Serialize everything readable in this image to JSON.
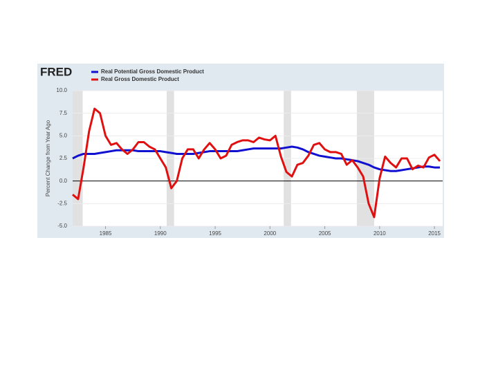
{
  "chart_data": {
    "type": "line",
    "brand": "FRED",
    "ylabel": "Percent Change from Year Ago",
    "x": [
      1982,
      1982.5,
      1983,
      1983.5,
      1984,
      1984.5,
      1985,
      1985.5,
      1986,
      1986.5,
      1987,
      1987.5,
      1988,
      1988.5,
      1989,
      1989.5,
      1990,
      1990.5,
      1991,
      1991.5,
      1992,
      1992.5,
      1993,
      1993.5,
      1994,
      1994.5,
      1995,
      1995.5,
      1996,
      1996.5,
      1997,
      1997.5,
      1998,
      1998.5,
      1999,
      1999.5,
      2000,
      2000.5,
      2001,
      2001.5,
      2002,
      2002.5,
      2003,
      2003.5,
      2004,
      2004.5,
      2005,
      2005.5,
      2006,
      2006.5,
      2007,
      2007.5,
      2008,
      2008.5,
      2009,
      2009.5,
      2010,
      2010.5,
      2011,
      2011.5,
      2012,
      2012.5,
      2013,
      2013.5,
      2014,
      2014.5,
      2015,
      2015.5
    ],
    "series": [
      {
        "name": "Real Potential Gross Domestic Product",
        "color": "#1010d0",
        "values": [
          2.5,
          2.8,
          3.0,
          3.0,
          3.0,
          3.1,
          3.2,
          3.3,
          3.4,
          3.4,
          3.4,
          3.4,
          3.3,
          3.3,
          3.3,
          3.3,
          3.3,
          3.2,
          3.1,
          3.0,
          3.0,
          3.0,
          3.0,
          3.1,
          3.2,
          3.3,
          3.3,
          3.3,
          3.3,
          3.3,
          3.3,
          3.4,
          3.5,
          3.6,
          3.6,
          3.6,
          3.6,
          3.6,
          3.6,
          3.7,
          3.8,
          3.7,
          3.5,
          3.2,
          3.0,
          2.8,
          2.7,
          2.6,
          2.5,
          2.5,
          2.4,
          2.3,
          2.2,
          2.0,
          1.8,
          1.5,
          1.3,
          1.2,
          1.1,
          1.1,
          1.2,
          1.3,
          1.4,
          1.5,
          1.6,
          1.6,
          1.5,
          1.5
        ]
      },
      {
        "name": "Real Gross Domestic Product",
        "color": "#e01010",
        "values": [
          -1.5,
          -2.0,
          1.5,
          5.5,
          8.0,
          7.5,
          5.0,
          4.0,
          4.2,
          3.5,
          3.0,
          3.5,
          4.3,
          4.3,
          3.8,
          3.5,
          2.5,
          1.5,
          -0.8,
          0.0,
          2.5,
          3.5,
          3.5,
          2.5,
          3.5,
          4.2,
          3.5,
          2.5,
          2.8,
          4.0,
          4.3,
          4.5,
          4.5,
          4.3,
          4.8,
          4.6,
          4.5,
          5.0,
          2.7,
          1.0,
          0.5,
          1.8,
          2.0,
          2.8,
          4.0,
          4.2,
          3.5,
          3.2,
          3.2,
          3.0,
          1.8,
          2.3,
          1.5,
          0.5,
          -2.5,
          -4.0,
          0.3,
          2.7,
          2.0,
          1.5,
          2.5,
          2.5,
          1.3,
          1.7,
          1.5,
          2.6,
          2.9,
          2.2
        ]
      }
    ],
    "shaded_periods": [
      [
        1982,
        1982.92
      ],
      [
        1990.58,
        1991.25
      ],
      [
        2001.25,
        2001.92
      ],
      [
        2007.92,
        2009.5
      ]
    ],
    "xlim": [
      1982,
      2015.75
    ],
    "xticks": [
      1985,
      1990,
      1995,
      2000,
      2005,
      2010,
      2015
    ],
    "ylim": [
      -5,
      10
    ],
    "yticks": [
      {
        "value": 10,
        "label": "10.0"
      },
      7.5,
      {
        "value": 5,
        "label": "5.0"
      },
      2.5,
      {
        "value": 0,
        "label": "0.0"
      },
      -2.5,
      {
        "value": -5,
        "label": "-5.0"
      }
    ],
    "grid": true
  }
}
